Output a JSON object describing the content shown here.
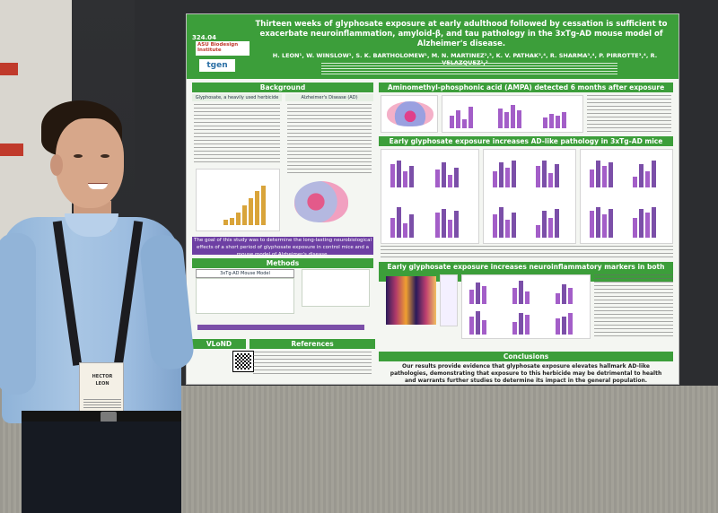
{
  "poster": {
    "code": "324.04",
    "logo_institute": "ASU Biodesign Institute",
    "logo_tgen": "tgen",
    "title": "Thirteen weeks of glyphosate exposure at early adulthood followed by cessation is sufficient to exacerbate neuroinflammation, amyloid-β, and tau pathology in the 3xTg-AD mouse model of Alzheimer's disease.",
    "authors": "H. LEON¹, W. WINSLOW¹, S. K. BARTHOLOMEW¹, M. N. MARTINEZ²,³, K. V. PATHAK³,⁴, R. SHARMA³,⁴, P. PIRROTTE³,⁴, R. VELAZQUEZ¹,²",
    "sections": {
      "background": "Background",
      "glyphosate": "Glyphosate, a heavily used herbicide",
      "alzheimers": "Alzheimer's Disease (AD)",
      "ampa": "Aminomethyl-phosphonic acid (AMPA) detected 6 months after exposure",
      "pathology": "Early glyphosate exposure increases AD-like pathology in 3xTg-AD mice",
      "methods": "Methods",
      "mouse_model": "3xTg-AD Mouse Model",
      "neuroinflammatory": "Early glyphosate exposure increases neuroinflammatory markers in both groups",
      "vlond": "VLoND",
      "references": "References",
      "conclusions": "Conclusions"
    },
    "goal": "The goal of this study was to determine the long-lasting neurobiological effects of a short period of glyphosate exposure in control mice and a mouse model of Alzheimer's disease.",
    "conclusion": "Our results provide evidence that glyphosate exposure elevates hallmark AD-like pathologies, demonstrating that exposure to this herbicide may be detrimental to health and warrants further studies to determine its impact in the general population."
  },
  "badge": {
    "first_name": "HECTOR",
    "last_name": "LEON"
  },
  "colors": {
    "poster_green": "#3c9e3a",
    "bar_purple": "#a35ec8",
    "goal_purple": "#6d3fa3"
  }
}
